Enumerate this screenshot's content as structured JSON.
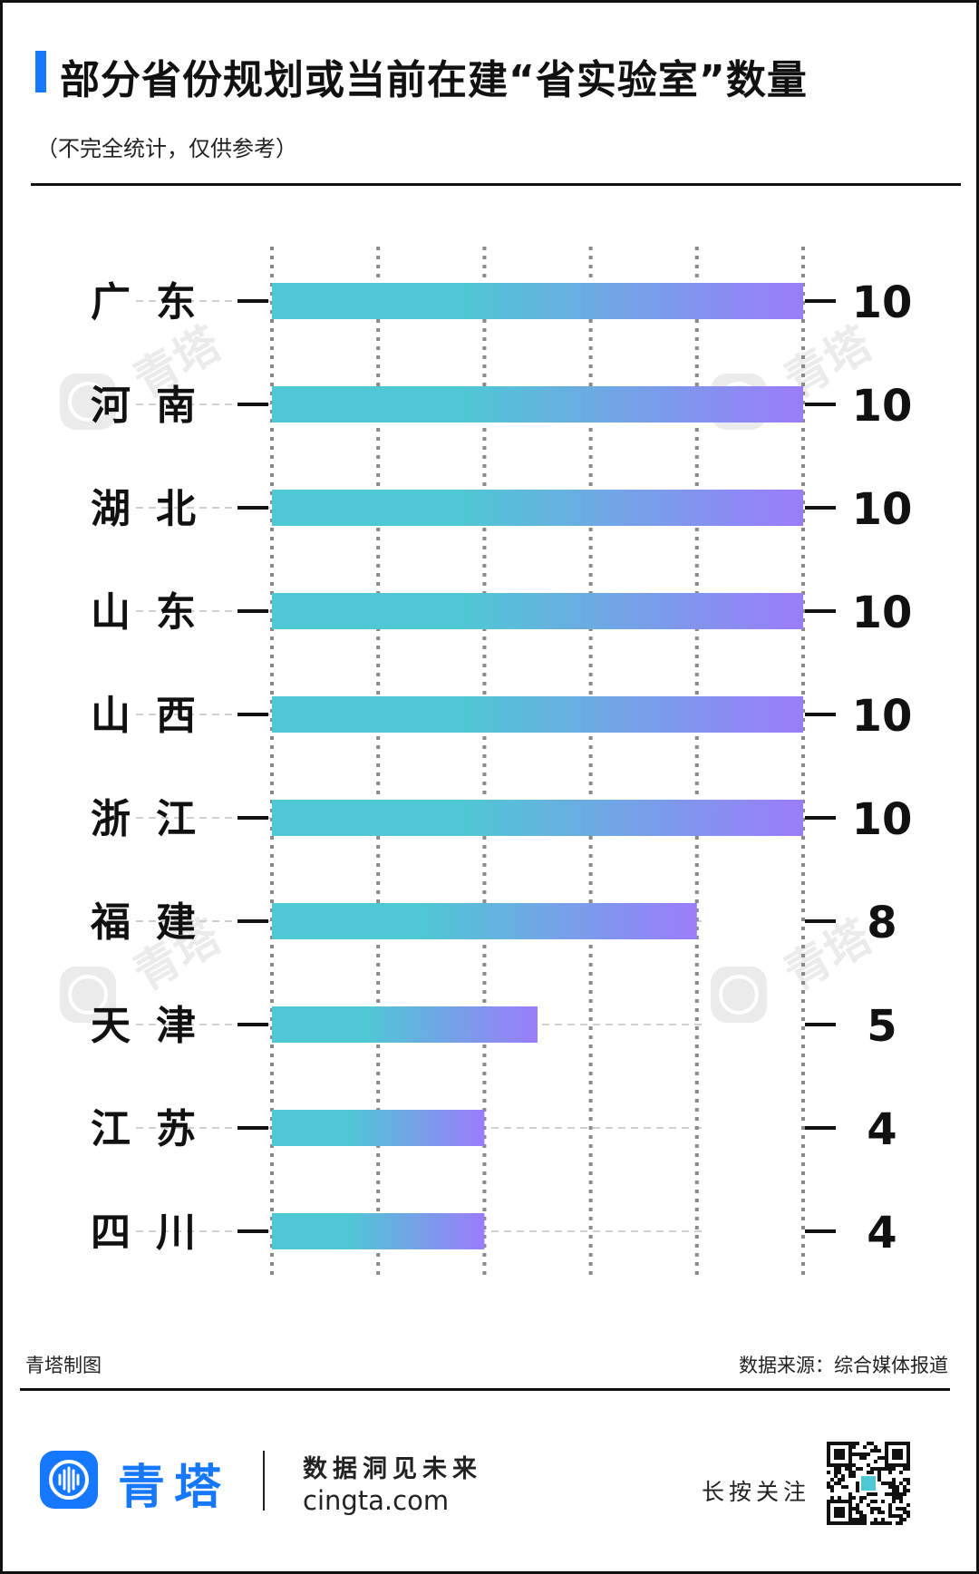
{
  "header": {
    "title": "部分省份规划或当前在建“省实验室”数量",
    "subtitle": "（不完全统计，仅供参考）"
  },
  "footer": {
    "credit_left": "青塔制图",
    "credit_right": "数据来源：综合媒体报道",
    "brand_name": "青塔",
    "slogan": "数据洞见未来",
    "site": "cingta.com",
    "follow_text": "长按关注"
  },
  "watermark_text": "青塔",
  "colors": {
    "accent": "#1677ff",
    "bar_gradient_start": "#4ec8d4",
    "bar_gradient_end": "#9b7cfb",
    "text": "#111111"
  },
  "icons": [
    "cingta-logo-icon",
    "qr-code-icon"
  ],
  "chart_data": {
    "type": "bar",
    "orientation": "horizontal",
    "categories": [
      "广 东",
      "河 南",
      "湖 北",
      "山 东",
      "山 西",
      "浙 江",
      "福 建",
      "天 津",
      "江 苏",
      "四 川"
    ],
    "values": [
      10,
      10,
      10,
      10,
      10,
      10,
      8,
      5,
      4,
      4
    ],
    "xlim": [
      0,
      10
    ],
    "gridlines": [
      0,
      2,
      4,
      6,
      8,
      10
    ],
    "grid": "vertical dotted",
    "data_labels": true,
    "title": "部分省份规划或当前在建“省实验室”数量",
    "xlabel": "",
    "ylabel": ""
  }
}
